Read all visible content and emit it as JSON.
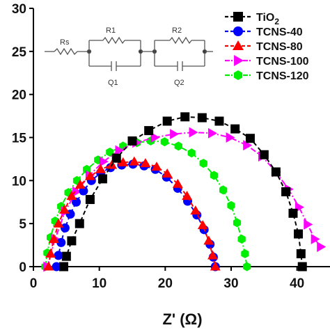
{
  "chart_data": {
    "type": "scatter",
    "xlabel": "Z' (Ω)",
    "ylabel": "",
    "xlim": [
      0,
      45
    ],
    "ylim": [
      0,
      30
    ],
    "xticks": [
      "0",
      "10",
      "20",
      "30",
      "40"
    ],
    "yticks": [
      "0",
      "5",
      "10",
      "15",
      "20",
      "25",
      "30"
    ],
    "legend_position": "top-right",
    "circuit": {
      "labels": {
        "rs": "Rs",
        "r1": "R1",
        "r2": "R2",
        "q1": "Q1",
        "q2": "Q2"
      }
    },
    "series": [
      {
        "name": "TiO2",
        "name_main": "TiO",
        "name_sub": "2",
        "color": "#000000",
        "marker": "square",
        "line": "dash",
        "x": [
          4.6,
          5.0,
          5.8,
          7.0,
          8.6,
          10.5,
          12.6,
          15.0,
          17.5,
          20.3,
          23.0,
          25.6,
          28.2,
          30.6,
          32.9,
          35.0,
          36.8,
          38.3,
          39.4,
          40.2,
          40.6,
          40.8
        ],
        "y": [
          0.0,
          1.2,
          3.0,
          5.0,
          7.8,
          10.2,
          12.6,
          14.6,
          15.8,
          16.9,
          17.4,
          17.3,
          16.9,
          16.0,
          14.9,
          13.0,
          11.0,
          8.7,
          6.2,
          3.8,
          1.5,
          0.0
        ]
      },
      {
        "name": "TCNS-40",
        "color": "#0000ff",
        "marker": "circle",
        "line": "dash",
        "x": [
          3.5,
          3.8,
          4.2,
          4.8,
          5.6,
          6.5,
          7.6,
          8.8,
          10.2,
          11.7,
          13.4,
          15.1,
          16.8,
          18.5,
          20.2,
          21.9,
          23.4,
          24.8,
          25.9,
          26.8,
          27.3,
          27.6
        ],
        "y": [
          0.0,
          1.3,
          2.8,
          4.5,
          6.1,
          7.5,
          8.8,
          10.0,
          10.9,
          11.5,
          11.8,
          11.9,
          11.7,
          11.3,
          10.4,
          9.1,
          7.6,
          6.0,
          4.3,
          2.6,
          1.1,
          0.0
        ]
      },
      {
        "name": "TCNS-80",
        "color": "#ff0000",
        "marker": "triangle-up",
        "line": "dash",
        "x": [
          2.3,
          2.6,
          3.1,
          3.8,
          4.7,
          5.8,
          7.1,
          8.6,
          10.2,
          11.9,
          13.6,
          15.3,
          17.0,
          18.7,
          20.3,
          21.9,
          23.3,
          24.6,
          25.7,
          26.6,
          27.2,
          27.6
        ],
        "y": [
          0.0,
          1.5,
          3.2,
          5.0,
          6.6,
          8.2,
          9.5,
          10.5,
          11.3,
          11.8,
          12.1,
          12.2,
          12.0,
          11.6,
          10.8,
          9.6,
          8.2,
          6.5,
          4.8,
          3.0,
          1.3,
          0.0
        ]
      },
      {
        "name": "TCNS-100",
        "color": "#ff00ff",
        "marker": "triangle-right",
        "line": "dashdot",
        "x": [
          2.1,
          3.3,
          4.8,
          6.5,
          8.5,
          10.6,
          13.0,
          15.6,
          18.4,
          21.3,
          24.2,
          27.1,
          29.8,
          32.4,
          34.7,
          36.8,
          38.7,
          40.3,
          41.6,
          42.7,
          43.6
        ],
        "y": [
          0.0,
          3.2,
          6.4,
          8.7,
          10.6,
          12.2,
          13.5,
          14.4,
          15.0,
          15.4,
          15.6,
          15.5,
          15.0,
          14.1,
          12.8,
          11.0,
          9.0,
          6.9,
          4.9,
          3.2,
          2.3
        ]
      },
      {
        "name": "TCNS-120",
        "color": "#00ee00",
        "marker": "hexagon",
        "line": "dashdot",
        "x": [
          1.8,
          2.1,
          2.6,
          3.3,
          4.2,
          5.3,
          6.6,
          8.1,
          9.8,
          11.6,
          13.6,
          15.7,
          17.8,
          19.9,
          22.0,
          24.0,
          25.8,
          27.4,
          28.8,
          30.0,
          30.9,
          31.6,
          32.1,
          32.4
        ],
        "y": [
          0.0,
          1.6,
          3.4,
          5.3,
          7.0,
          8.6,
          10.0,
          11.3,
          12.4,
          13.3,
          14.0,
          14.4,
          14.6,
          14.5,
          14.0,
          13.2,
          12.0,
          10.6,
          8.9,
          7.1,
          5.1,
          3.2,
          1.5,
          0.0
        ]
      }
    ]
  }
}
